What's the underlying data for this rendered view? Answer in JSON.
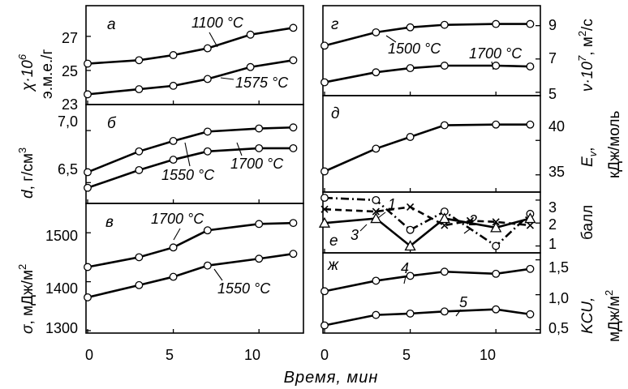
{
  "chart_data": {
    "type": "line",
    "xlabel": "Время, мин",
    "x_ticks": [
      "0",
      "5",
      "10"
    ],
    "xlim": [
      0,
      12.5
    ],
    "panels": [
      {
        "letter": "а",
        "ylabel": [
          "χ·10",
          "6",
          "э.м.е./г"
        ],
        "ylim": [
          23,
          28.8
        ],
        "yticks": [
          23,
          25,
          27
        ],
        "series": [
          {
            "name": "1100 °C",
            "x": [
              0,
              3,
              5,
              7,
              9.5,
              12
            ],
            "y": [
              25.4,
              25.6,
              25.9,
              26.3,
              27.1,
              27.5
            ]
          },
          {
            "name": "1575 °C",
            "x": [
              0,
              3,
              5,
              7,
              9.5,
              12
            ],
            "y": [
              23.6,
              23.9,
              24.1,
              24.5,
              25.2,
              25.6
            ]
          }
        ]
      },
      {
        "letter": "б",
        "ylabel": [
          "d",
          ", г/см",
          "3"
        ],
        "ylim": [
          6.3,
          7.25
        ],
        "yticks": [
          6.5,
          7.0
        ],
        "series": [
          {
            "name": "1700 °C",
            "x": [
              0,
              3,
              5,
              7,
              10,
              12
            ],
            "y": [
              6.6,
              6.8,
              6.9,
              6.99,
              7.02,
              7.03
            ]
          },
          {
            "name": "1550 °C",
            "x": [
              0,
              3,
              5,
              7,
              10,
              12
            ],
            "y": [
              6.45,
              6.62,
              6.72,
              6.8,
              6.83,
              6.83
            ]
          }
        ]
      },
      {
        "letter": "в",
        "ylabel": [
          "σ",
          ", мДж/м",
          "2"
        ],
        "ylim": [
          1295,
          1560
        ],
        "yticks": [
          1300,
          1400,
          1500
        ],
        "series": [
          {
            "name": "1700 °C",
            "x": [
              0,
              3,
              5,
              7,
              10,
              12
            ],
            "y": [
              1430,
              1450,
              1470,
              1505,
              1518,
              1520
            ]
          },
          {
            "name": "1550 °C",
            "x": [
              0,
              3,
              5,
              7,
              10,
              12
            ],
            "y": [
              1368,
              1393,
              1410,
              1433,
              1447,
              1457
            ]
          }
        ]
      },
      {
        "letter": "г",
        "ylabel": [
          "ν·10",
          "7",
          ", м",
          "2",
          "/с"
        ],
        "ylim": [
          4.8,
          10.2
        ],
        "yticks": [
          5,
          7,
          9
        ],
        "series": [
          {
            "name": "1500 °C",
            "x": [
              0,
              3,
              5,
              7,
              10,
              12
            ],
            "y": [
              7.8,
              8.6,
              8.9,
              9.05,
              9.1,
              9.1
            ]
          },
          {
            "name": "1700 °C",
            "x": [
              0,
              3,
              5,
              7,
              10,
              12
            ],
            "y": [
              5.6,
              6.2,
              6.45,
              6.6,
              6.6,
              6.55
            ]
          }
        ]
      },
      {
        "letter": "д",
        "ylabel": [
          "E",
          "v",
          ",",
          "кДж/моль"
        ],
        "ylim": [
          32.5,
          46.5
        ],
        "yticks": [
          35,
          40
        ],
        "series": [
          {
            "name": "",
            "x": [
              0,
              3,
              5,
              7,
              10,
              12
            ],
            "y": [
              35.5,
              38.8,
              40.5,
              42.2,
              42.3,
              42.3
            ]
          }
        ]
      },
      {
        "letter": "е",
        "ylabel": [
          "балл"
        ],
        "ylim": [
          0.7,
          3.35
        ],
        "yticks": [
          1,
          2,
          3
        ],
        "series": [
          {
            "name": "1",
            "marker": "circle",
            "dash": "dashdot",
            "x": [
              0,
              3,
              5,
              7,
              10,
              12
            ],
            "y": [
              3.1,
              3.0,
              1.7,
              2.5,
              1.0,
              2.4
            ]
          },
          {
            "name": "2",
            "marker": "cross",
            "dash": "dash",
            "x": [
              0,
              3,
              5,
              7,
              8.5,
              10,
              12
            ],
            "y": [
              2.6,
              2.5,
              2.7,
              1.9,
              2.1,
              2.05,
              1.9
            ]
          },
          {
            "name": "3",
            "marker": "triangle",
            "dash": "solid",
            "x": [
              0,
              3,
              5,
              7,
              10,
              12
            ],
            "y": [
              2.0,
              2.2,
              1.0,
              2.2,
              1.8,
              2.2
            ]
          }
        ]
      },
      {
        "letter": "ж",
        "ylabel": [
          "KCU,",
          "мДж/м",
          "2"
        ],
        "ylim": [
          0.45,
          1.6
        ],
        "yticks": [
          0.5,
          1.0,
          1.5
        ],
        "ytick_labels": [
          "0,5",
          "1,0",
          "1,5"
        ],
        "series": [
          {
            "name": "4",
            "x": [
              0,
              3,
              5,
              7,
              10,
              12
            ],
            "y": [
              1.05,
              1.2,
              1.27,
              1.33,
              1.3,
              1.37
            ]
          },
          {
            "name": "5",
            "x": [
              0,
              3,
              5,
              7,
              10,
              12
            ],
            "y": [
              0.56,
              0.71,
              0.73,
              0.76,
              0.79,
              0.72
            ]
          }
        ]
      }
    ]
  }
}
